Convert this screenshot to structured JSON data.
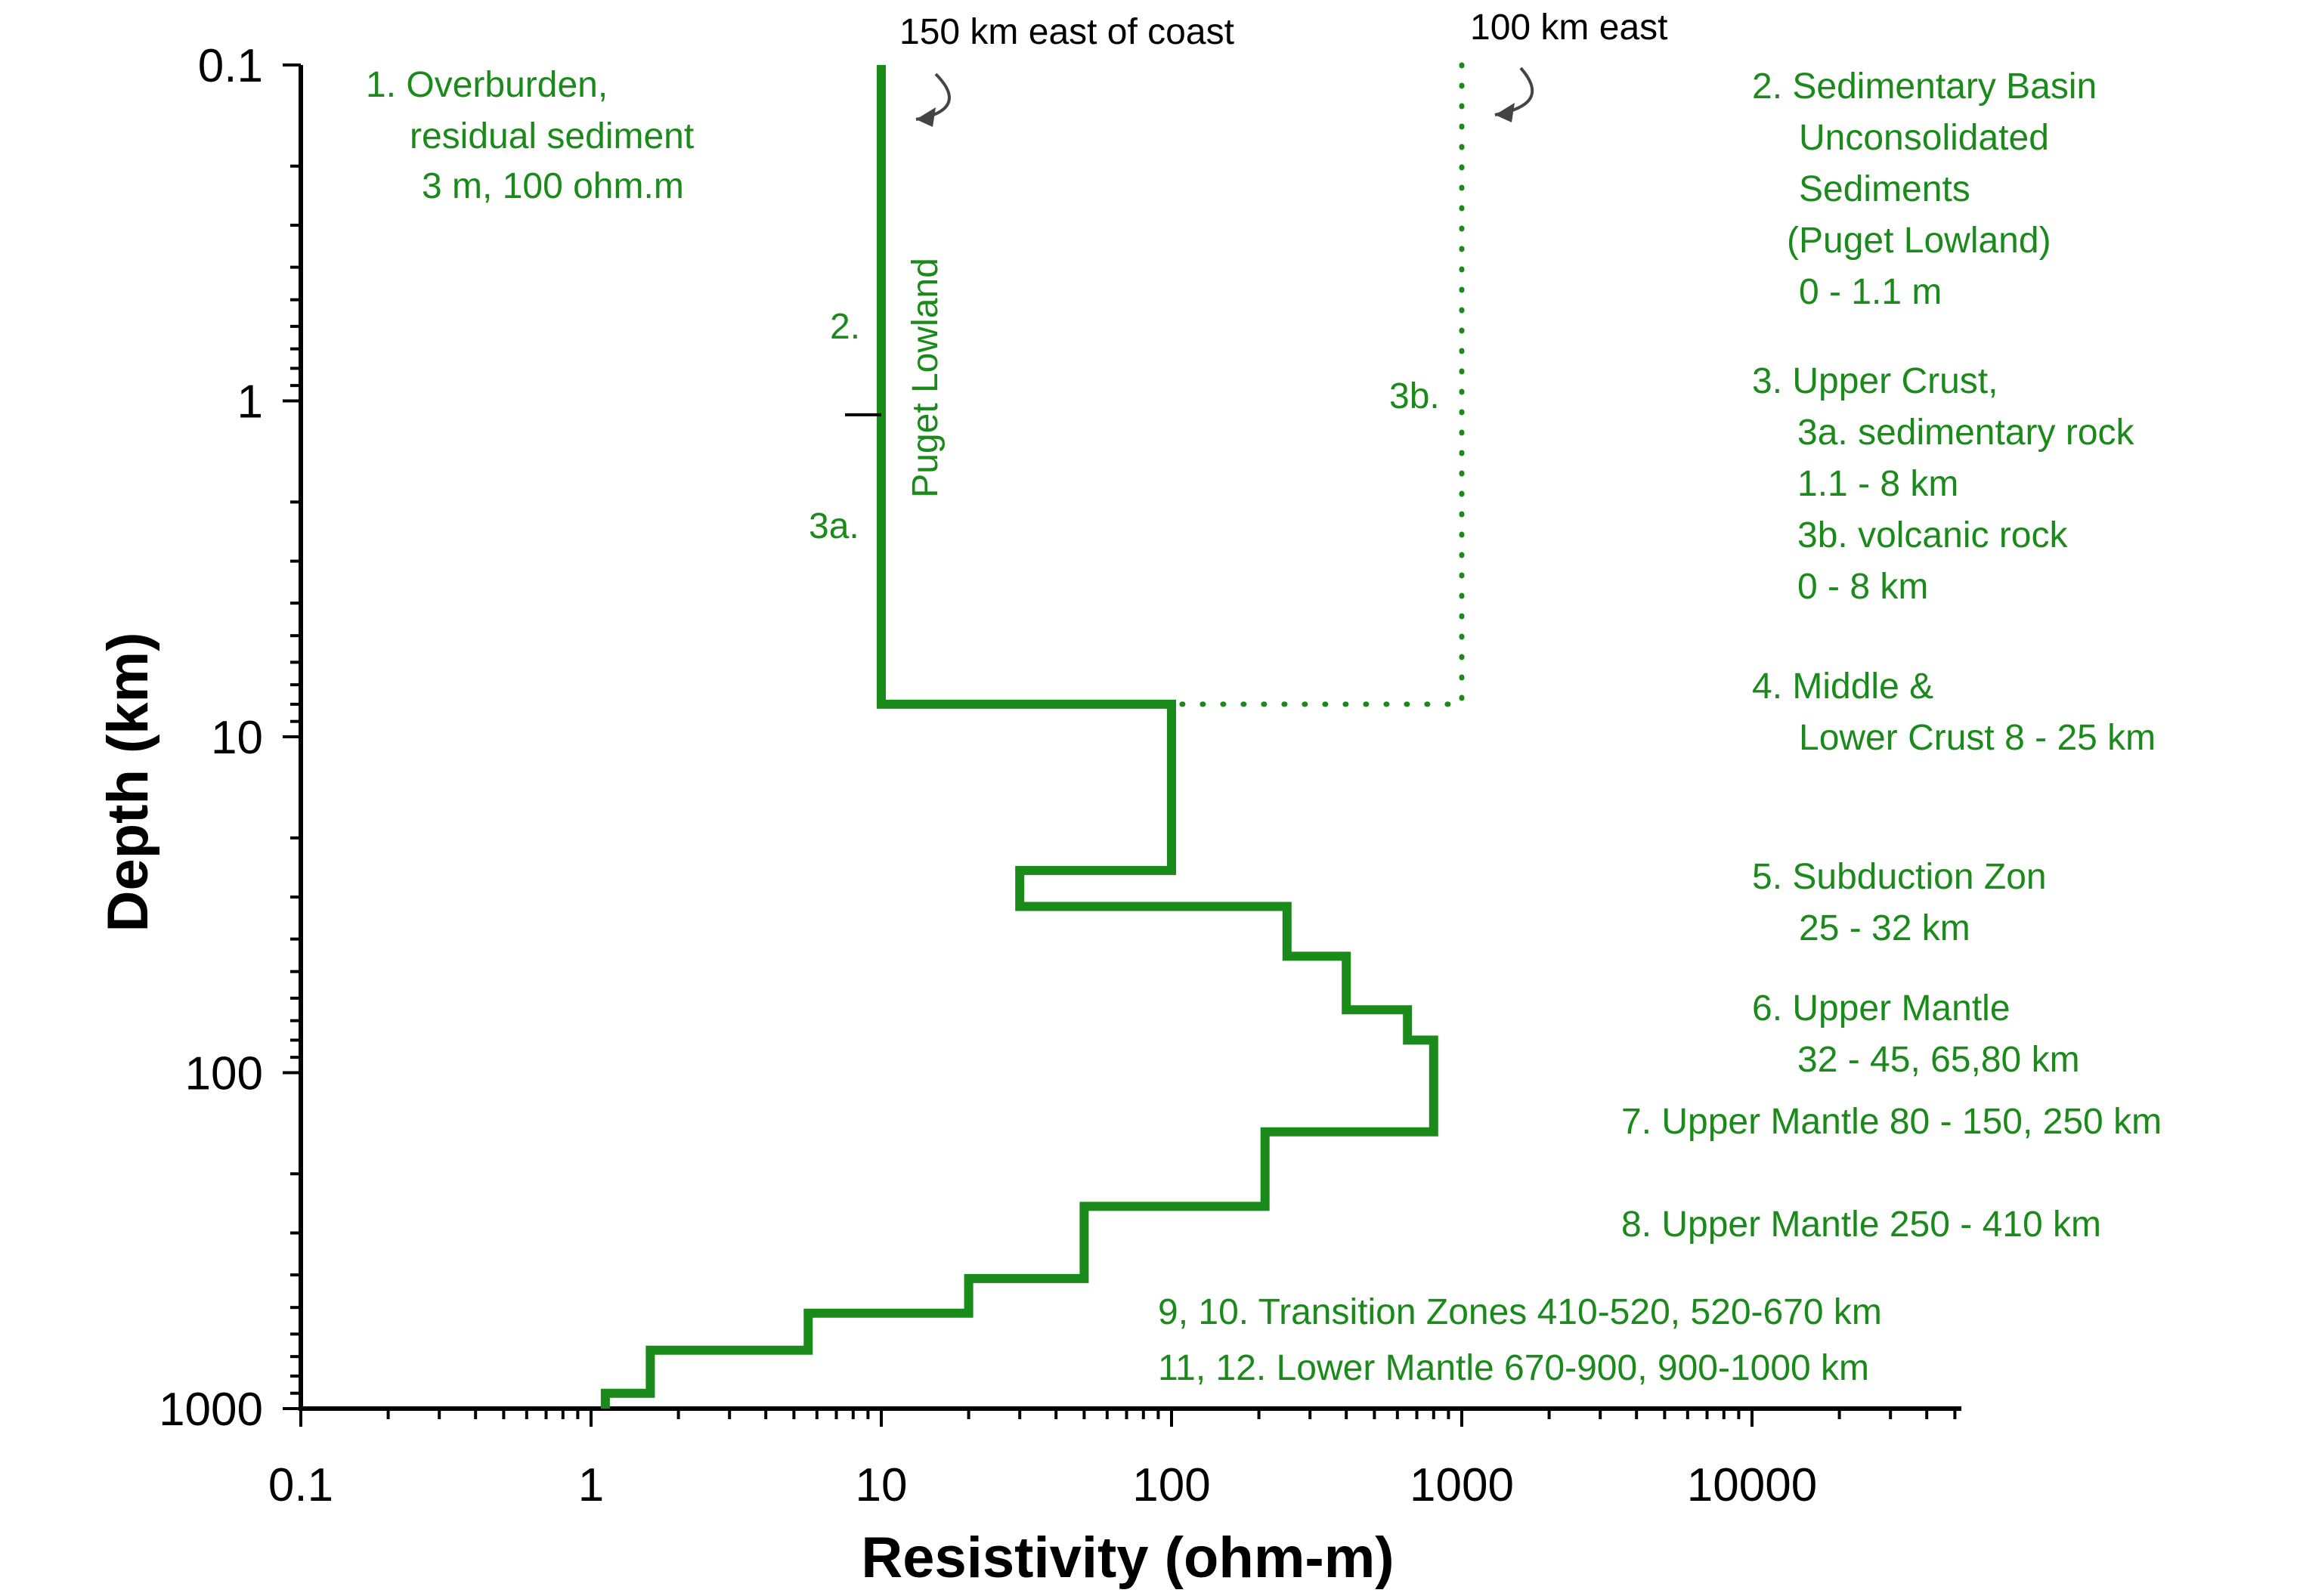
{
  "chart_data": {
    "type": "line",
    "xlabel": "Resistivity (ohm-m)",
    "ylabel": "Depth (km)",
    "xscale": "log",
    "yscale": "log",
    "y_inverted": true,
    "xlim": [
      0.1,
      50000
    ],
    "ylim": [
      0.1,
      1000
    ],
    "x_tick_labels": [
      "0.1",
      "1",
      "10",
      "100",
      "1000",
      "10000"
    ],
    "y_tick_labels": [
      "0.1",
      "1",
      "10",
      "100",
      "1000"
    ],
    "colors": {
      "series": "#1a8a1a",
      "axis": "#000000",
      "arrow": "#444444"
    },
    "series": [
      {
        "name": "150 km east of coast",
        "style": "solid",
        "points": [
          {
            "x": 10,
            "y": 0.1
          },
          {
            "x": 10,
            "y": 8
          },
          {
            "x": 100,
            "y": 8
          },
          {
            "x": 100,
            "y": 25
          },
          {
            "x": 30,
            "y": 25
          },
          {
            "x": 30,
            "y": 32
          },
          {
            "x": 250,
            "y": 32
          },
          {
            "x": 250,
            "y": 45
          },
          {
            "x": 400,
            "y": 45
          },
          {
            "x": 400,
            "y": 65
          },
          {
            "x": 650,
            "y": 65
          },
          {
            "x": 650,
            "y": 80
          },
          {
            "x": 800,
            "y": 80
          },
          {
            "x": 800,
            "y": 150
          },
          {
            "x": 210,
            "y": 150
          },
          {
            "x": 210,
            "y": 250
          },
          {
            "x": 50,
            "y": 250
          },
          {
            "x": 50,
            "y": 410
          },
          {
            "x": 20,
            "y": 410
          },
          {
            "x": 20,
            "y": 520
          },
          {
            "x": 5.6,
            "y": 520
          },
          {
            "x": 5.6,
            "y": 670
          },
          {
            "x": 1.6,
            "y": 670
          },
          {
            "x": 1.6,
            "y": 900
          },
          {
            "x": 1.12,
            "y": 900
          },
          {
            "x": 1.12,
            "y": 1000
          }
        ]
      },
      {
        "name": "100 km east",
        "style": "dotted",
        "points": [
          {
            "x": 1000,
            "y": 0.1
          },
          {
            "x": 1000,
            "y": 8
          },
          {
            "x": 100,
            "y": 8
          }
        ]
      }
    ],
    "boundary_tick": {
      "x": 10,
      "y": 1.1
    },
    "annotations": {
      "label_150km": "150 km east of coast",
      "label_100km": "100 km east",
      "puget_lowland": "Puget Lowland",
      "l2": "2.",
      "l3a": "3a.",
      "l3b": "3b.",
      "item1": [
        "1. Overburden,",
        "residual sediment",
        "3 m, 100 ohm.m"
      ],
      "item2": [
        "2. Sedimentary Basin",
        "Unconsolidated",
        "Sediments",
        "(Puget Lowland)",
        "0 - 1.1 m"
      ],
      "item3": [
        "3. Upper Crust,",
        "3a. sedimentary rock",
        "1.1 - 8 km",
        "3b. volcanic rock",
        "0 - 8 km"
      ],
      "item4": [
        "4. Middle &",
        "Lower Crust 8 - 25 km"
      ],
      "item5": [
        "5. Subduction Zon",
        "25 - 32 km"
      ],
      "item6": [
        "6. Upper Mantle",
        "32 - 45, 65,80 km"
      ],
      "item7": "7. Upper Mantle 80 - 150, 250 km",
      "item8": "8. Upper Mantle  250 - 410 km",
      "item9_10": "9, 10. Transition Zones 410-520, 520-670 km",
      "item11_12": "11, 12. Lower Mantle 670-900, 900-1000 km"
    }
  }
}
